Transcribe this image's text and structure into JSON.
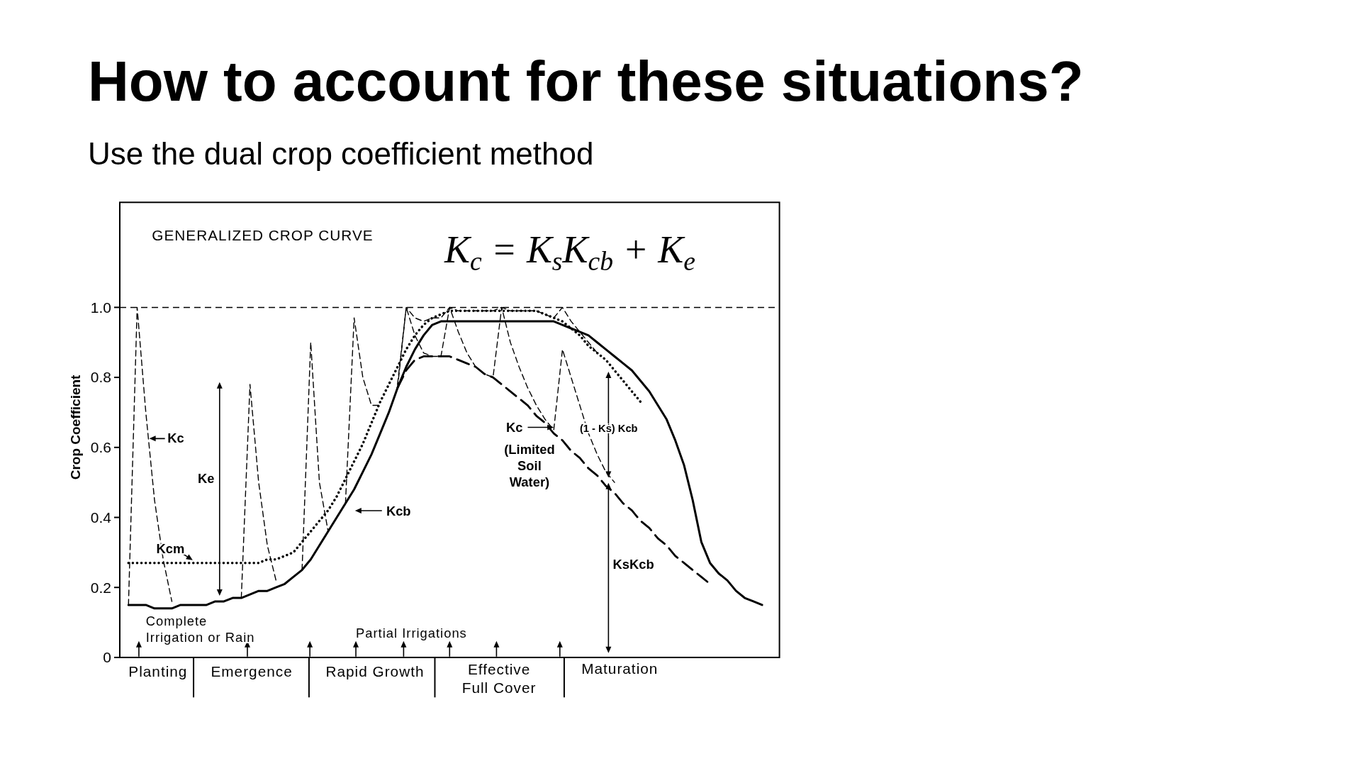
{
  "chart_data": {
    "type": "line",
    "title": "How to account for these situations?",
    "subtitle": "Use the dual crop coefficient method",
    "ylabel": "Crop Coefficient",
    "categories": [
      null,
      null,
      null,
      null,
      null,
      null,
      null,
      null,
      null,
      null,
      null,
      null,
      null,
      null,
      null,
      null,
      null,
      null,
      null,
      null,
      null,
      null,
      null,
      null,
      null,
      null,
      null,
      null,
      null,
      null,
      null,
      null,
      null,
      null,
      null,
      null,
      null,
      null,
      null,
      null,
      null,
      null,
      null,
      null,
      null,
      null,
      null,
      null,
      null,
      null,
      null,
      null,
      null,
      null,
      null,
      null,
      null,
      null,
      null,
      null,
      null,
      null,
      null,
      null,
      null,
      null,
      null,
      null,
      null,
      null,
      null,
      null,
      null,
      null,
      null,
      null,
      null
    ],
    "ylim": [
      0,
      1.3
    ],
    "yticks": [
      0,
      0.2,
      0.4,
      0.6,
      0.8,
      {
        "value": 1.0,
        "label": "1.0"
      }
    ],
    "grid": false,
    "legend": false,
    "tick_labels": "y",
    "series": [
      {
        "color": "#000000",
        "line_style": "solid",
        "values": [
          null,
          0.15,
          0.15,
          0.15,
          0.14,
          0.14,
          0.14,
          0.15,
          0.15,
          0.15,
          0.15,
          0.16,
          0.16,
          0.17,
          0.17,
          0.18,
          0.19,
          0.19,
          0.2,
          0.21,
          0.23,
          0.25,
          0.28,
          0.32,
          0.36,
          0.4,
          0.44,
          0.48,
          0.53,
          0.58,
          0.64,
          0.7,
          0.77,
          0.83,
          0.88,
          0.92,
          0.95,
          0.96,
          0.96,
          0.96,
          0.96,
          0.96,
          0.96,
          0.96,
          0.96,
          0.96,
          0.96,
          0.96,
          0.96,
          0.96,
          0.96,
          0.95,
          0.94,
          0.93,
          0.92,
          0.9,
          0.88,
          0.86,
          0.84,
          0.82,
          0.79,
          0.76,
          0.72,
          0.68,
          0.62,
          0.55,
          0.45,
          0.33,
          0.27,
          0.24,
          0.22,
          0.19,
          0.17,
          0.16,
          0.15,
          null,
          null
        ]
      },
      {
        "color": "#000000",
        "line_style": "dotted",
        "values": [
          null,
          0.27,
          0.27,
          0.27,
          0.27,
          0.27,
          0.27,
          0.27,
          0.27,
          0.27,
          0.27,
          0.27,
          0.27,
          0.27,
          0.27,
          0.27,
          0.27,
          0.28,
          0.28,
          0.29,
          0.3,
          0.33,
          0.36,
          0.39,
          0.42,
          0.46,
          0.51,
          0.56,
          0.61,
          0.67,
          0.73,
          0.78,
          0.83,
          0.88,
          0.92,
          0.95,
          0.97,
          0.98,
          0.99,
          0.99,
          0.99,
          0.99,
          0.99,
          0.99,
          0.99,
          0.99,
          0.99,
          0.99,
          0.99,
          0.98,
          0.97,
          0.96,
          0.94,
          0.92,
          0.89,
          0.87,
          0.85,
          0.82,
          0.79,
          0.76,
          0.73,
          null,
          null,
          null,
          null,
          null,
          null,
          null,
          null,
          null,
          null,
          null,
          null,
          null,
          null,
          null,
          null
        ]
      },
      {
        "color": "#000000",
        "line_style": "dashed",
        "values": [
          null,
          0.15,
          1.0,
          0.7,
          0.45,
          0.28,
          0.16,
          null,
          null,
          null,
          null,
          null,
          null,
          null,
          0.17,
          0.78,
          0.5,
          0.32,
          0.22,
          null,
          null,
          0.25,
          0.9,
          0.5,
          0.36,
          null,
          0.44,
          0.97,
          0.8,
          0.72,
          0.72,
          null,
          0.78,
          1.0,
          0.97,
          0.96,
          0.97,
          0.97,
          1.0,
          0.99,
          0.99,
          0.99,
          0.99,
          0.99,
          1.0,
          0.99,
          0.99,
          0.99,
          0.99,
          0.98,
          0.97,
          1.0,
          0.96,
          0.93,
          0.9,
          0.87,
          null,
          null,
          null,
          null,
          null,
          null,
          null,
          null,
          null,
          null,
          null,
          null,
          null,
          null,
          null,
          null,
          null,
          null,
          null,
          null,
          null
        ]
      },
      {
        "color": "#000000",
        "line_style": "dashed",
        "values": [
          null,
          null,
          null,
          null,
          null,
          null,
          null,
          null,
          null,
          null,
          null,
          null,
          null,
          null,
          null,
          null,
          null,
          null,
          null,
          null,
          null,
          null,
          null,
          null,
          null,
          null,
          null,
          null,
          null,
          null,
          null,
          null,
          0.77,
          1.0,
          0.92,
          0.87,
          0.86,
          0.86,
          1.0,
          0.93,
          0.87,
          0.83,
          0.81,
          0.8,
          1.0,
          0.9,
          0.83,
          0.77,
          0.72,
          0.68,
          0.65,
          0.88,
          0.8,
          0.72,
          0.64,
          0.58,
          0.53,
          0.5,
          null,
          null,
          null,
          null,
          null,
          null,
          null,
          null,
          null,
          null,
          null,
          null,
          null,
          null,
          null,
          null,
          null,
          null,
          null
        ]
      },
      {
        "color": "#000000",
        "line_style": "dashed",
        "values": [
          null,
          null,
          null,
          null,
          null,
          null,
          null,
          null,
          null,
          null,
          null,
          null,
          null,
          null,
          null,
          null,
          null,
          null,
          null,
          null,
          null,
          null,
          null,
          null,
          null,
          null,
          null,
          null,
          null,
          null,
          null,
          null,
          0.77,
          0.82,
          0.85,
          0.86,
          0.86,
          0.86,
          0.86,
          0.85,
          0.84,
          0.83,
          0.81,
          0.8,
          0.78,
          0.76,
          0.74,
          0.72,
          0.69,
          0.67,
          0.64,
          0.62,
          0.59,
          0.57,
          0.54,
          0.52,
          0.49,
          0.47,
          0.44,
          0.42,
          0.39,
          0.37,
          0.34,
          0.32,
          0.29,
          0.27,
          0.25,
          0.23,
          0.21,
          null,
          null,
          null,
          null,
          null,
          null,
          null,
          null
        ]
      }
    ],
    "ref_lines": [
      {
        "axis": "y",
        "value": 1.0,
        "label": null,
        "line_style": "dashed"
      }
    ],
    "annotations": [
      "GENERALIZED CROP CURVE",
      "K$_{c}$ = K$_{s}$K$_{cb}$ + K$_{e}$",
      "Ke",
      "(Limited Soil Water)",
      "(1 - Ks) Kcb",
      "Complete Irrigation or Rain",
      "Partial Irrigations",
      "Planting",
      "Emergence",
      "Rapid Growth",
      "Effective Full Cover",
      "Maturation",
      "Kcb",
      "Kcm",
      "Kc",
      "Kc",
      "KsKcb"
    ]
  }
}
